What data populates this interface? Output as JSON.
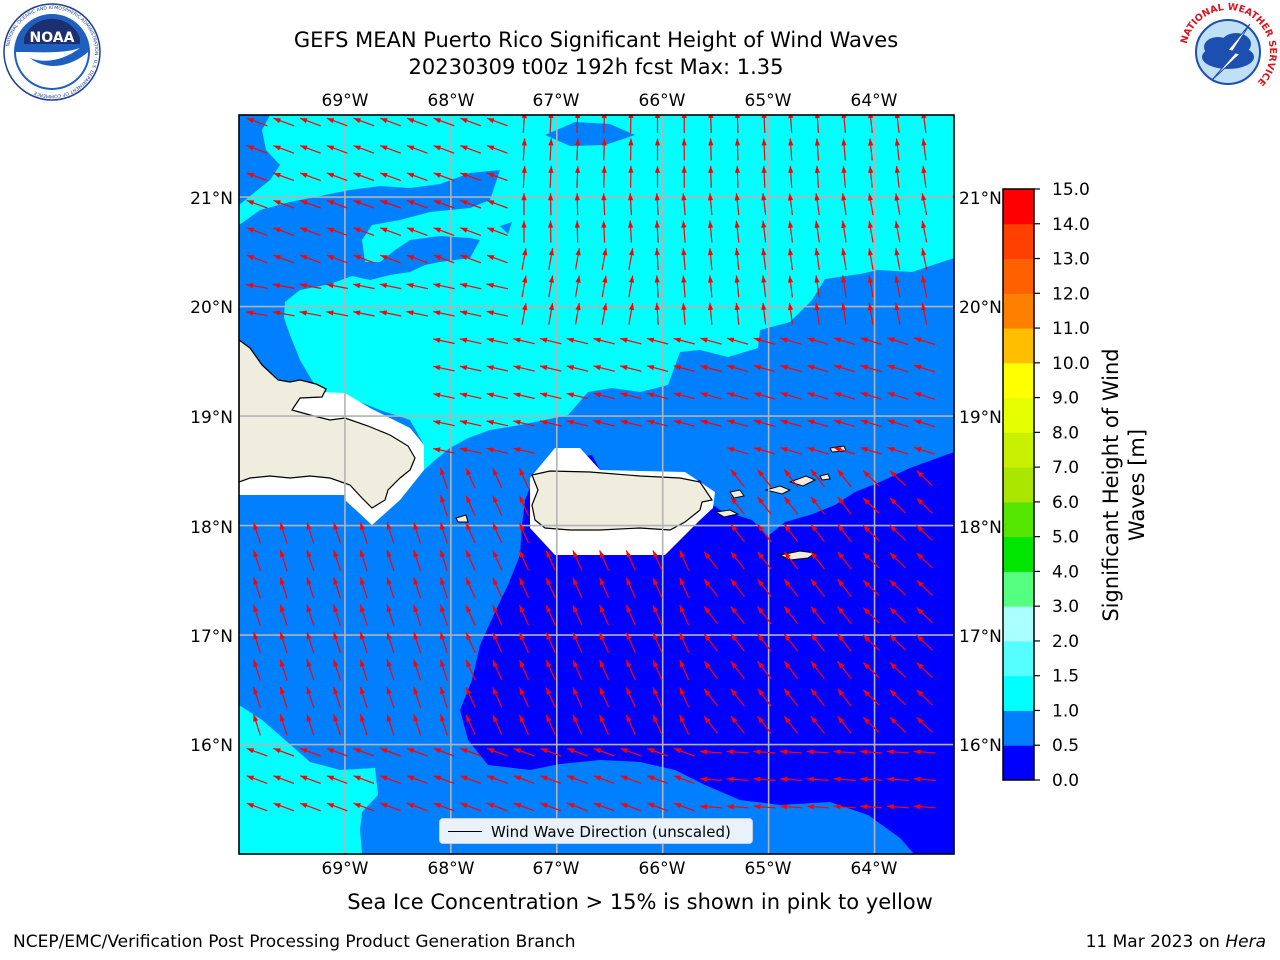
{
  "header": {
    "title_line1": "GEFS MEAN Puerto Rico Significant Height of Wind Waves",
    "title_line2": "20230309 t00z 192h fcst   Max: 1.35"
  },
  "logos": {
    "noaa": {
      "text": "NOAA",
      "ring_text": "NATIONAL OCEANIC AND ATMOSPHERIC ADMINISTRATION · U.S. DEPARTMENT OF COMMERCE"
    },
    "nws": {
      "ring_text": "NATIONAL WEATHER SERVICE"
    }
  },
  "map": {
    "lon_range": [
      -70.0,
      -63.25
    ],
    "lat_range": [
      15.0,
      21.75
    ],
    "lon_ticks": [
      "69°W",
      "68°W",
      "67°W",
      "66°W",
      "65°W",
      "64°W"
    ],
    "lat_ticks": [
      "21°N",
      "20°N",
      "19°N",
      "18°N",
      "17°N",
      "16°N"
    ],
    "gridlines": true,
    "land_color": "#efedde",
    "arrow_color": "#ff0000",
    "legend": {
      "label": "Wind Wave Direction (unscaled)",
      "placement": "lower-center"
    }
  },
  "colorbar": {
    "title": "Significant Height of Wind Waves [m]",
    "tick_labels": [
      "0.0",
      "0.5",
      "1.0",
      "1.5",
      "2.0",
      "3.0",
      "4.0",
      "5.0",
      "6.0",
      "7.0",
      "8.0",
      "9.0",
      "10.0",
      "11.0",
      "12.0",
      "13.0",
      "14.0",
      "15.0"
    ],
    "colors": [
      "#0000ff",
      "#0080ff",
      "#00ffff",
      "#55ffff",
      "#aaffff",
      "#55ff80",
      "#00e600",
      "#55e600",
      "#aae600",
      "#c8f000",
      "#e6ff00",
      "#ffff00",
      "#ffbf00",
      "#ff8000",
      "#ff6000",
      "#ff4000",
      "#ff0000"
    ]
  },
  "footer": {
    "note": "Sea Ice Concentration > 15% is shown in pink to yellow",
    "credit_left": "NCEP/EMC/Verification Post Processing Product Generation Branch",
    "credit_right_prefix": "11 Mar 2023 on",
    "credit_right_host": "Hera"
  }
}
